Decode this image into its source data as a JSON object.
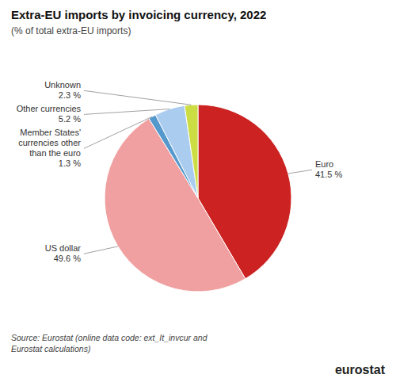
{
  "chart_data": {
    "type": "pie",
    "title": "Extra-EU imports by invoicing currency, 2022",
    "subtitle": "(% of total extra-EU imports)",
    "categories": [
      "Euro",
      "US dollar",
      "Member States'\ncurrencies other\nthan the euro",
      "Other currencies",
      "Unknown"
    ],
    "values": [
      41.5,
      49.6,
      1.3,
      5.2,
      2.3
    ],
    "value_labels": [
      "41.5 %",
      "49.6 %",
      "1.3 %",
      "5.2 %",
      "2.3 %"
    ],
    "colors": [
      "#cc2222",
      "#f0a0a0",
      "#5599cc",
      "#aaccee",
      "#ccdd44"
    ],
    "source": "Source: Eurostat (online data code: ext_It_invcur and\nEurostat calculations)",
    "annotations": [
      "eurostat"
    ]
  }
}
